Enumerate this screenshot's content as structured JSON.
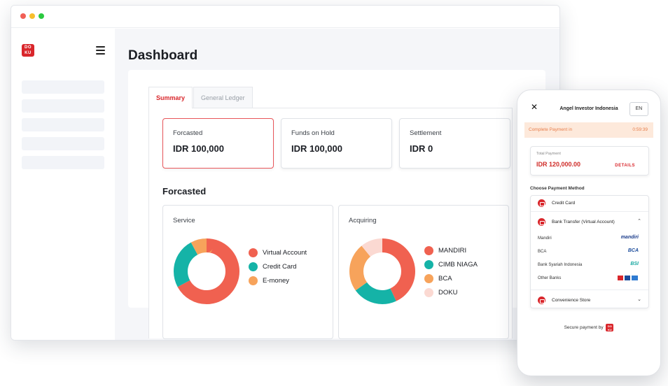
{
  "window": {
    "logo": "DOKU"
  },
  "dashboard": {
    "title": "Dashboard",
    "tabs": [
      {
        "label": "Summary"
      },
      {
        "label": "General Ledger"
      }
    ],
    "stats": [
      {
        "label": "Forcasted",
        "value": "IDR 100,000"
      },
      {
        "label": "Funds on Hold",
        "value": "IDR 100,000"
      },
      {
        "label": "Settlement",
        "value": "IDR 0"
      }
    ],
    "section_title": "Forcasted",
    "colors": {
      "red": "#f06150",
      "teal": "#15b3a7",
      "orange": "#f7a35b",
      "pink": "#fbd9d2",
      "brand": "#d9262b"
    }
  },
  "chart_data": [
    {
      "type": "pie",
      "title": "Service",
      "labels": [
        "Virtual Account",
        "Credit Card",
        "E-money"
      ],
      "values": [
        67,
        25,
        8
      ]
    },
    {
      "type": "pie",
      "title": "Acquiring",
      "labels": [
        "MANDIRI",
        "CIMB NIAGA",
        "BCA",
        "DOKU"
      ],
      "values": [
        43,
        22,
        24,
        11
      ]
    }
  ],
  "phone": {
    "title": "Angel Investor Indonesia",
    "lang": "EN",
    "timer_label": "Complete Payment in",
    "timer_value": "0:59:39",
    "total_label": "Total Payment",
    "total_value": "IDR 120,000.00",
    "details": "DETAILS",
    "choose_label": "Choose Payment Method",
    "methods": [
      {
        "label": "Credit Card"
      },
      {
        "label": "Bank Transfer (Virtual Account)"
      },
      {
        "label": "Convenience Store"
      }
    ],
    "banks": [
      {
        "name": "Mandiri",
        "logo": "mandiri"
      },
      {
        "name": "BCA",
        "logo": "BCA"
      },
      {
        "name": "Bank Syariah Indonesia",
        "logo": "BSI"
      },
      {
        "name": "Other Banks",
        "logo": ""
      }
    ],
    "secure": "Secure payment by"
  }
}
